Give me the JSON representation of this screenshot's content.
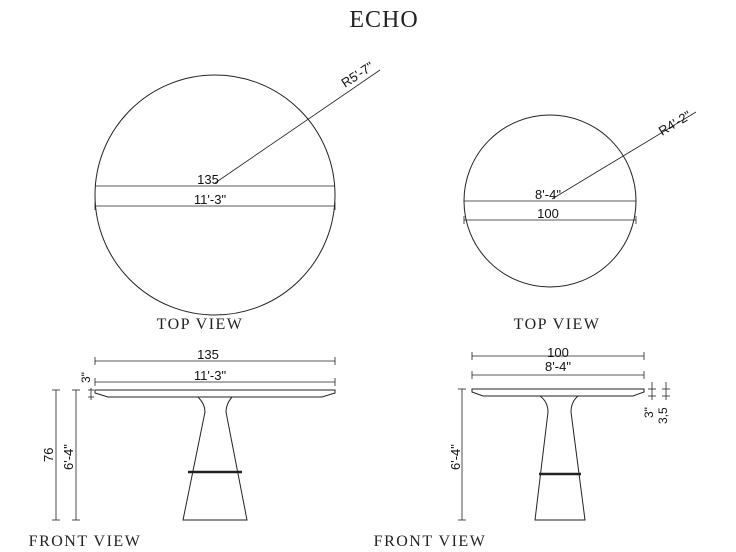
{
  "title": "ECHO",
  "left": {
    "top_view": {
      "radius_label": "R5'-7\"",
      "width_cm": "135",
      "width_ft": "11'-3\"",
      "view_label": "TOP  VIEW"
    },
    "front_view": {
      "width_cm": "135",
      "width_ft": "11'-3\"",
      "top_thickness": "3\"",
      "height_cm": "76",
      "height_ft": "6'-4\"",
      "view_label": "FRONT  VIEW"
    }
  },
  "right": {
    "top_view": {
      "radius_label": "R4'-2\"",
      "width_ft": "8'-4\"",
      "width_cm": "100",
      "view_label": "TOP  VIEW"
    },
    "front_view": {
      "width_cm": "100",
      "width_ft": "8'-4\"",
      "top_thickness_in": "3\"",
      "top_thickness_cm": "3,5",
      "height_ft": "6'-4\"",
      "view_label": "FRONT  VIEW"
    }
  }
}
